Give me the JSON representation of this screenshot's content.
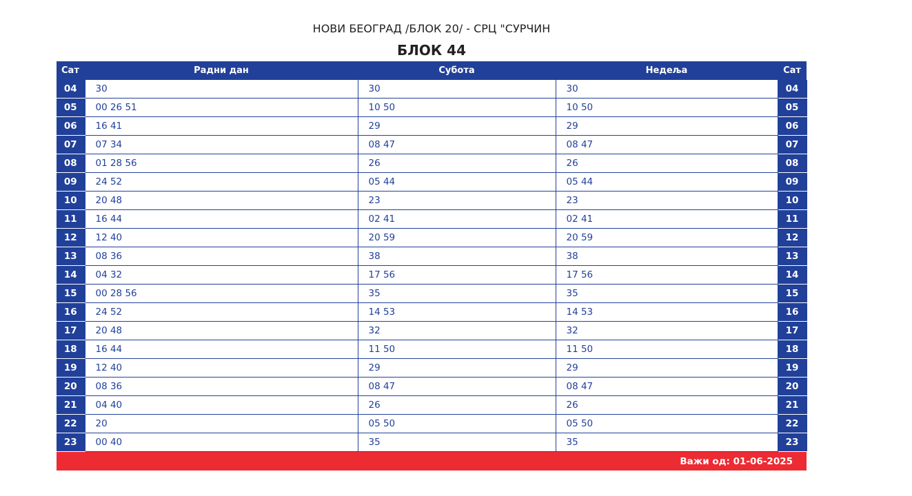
{
  "header": {
    "subtitle": "НОВИ БЕОГРАД /БЛОК 20/ - СРЦ \"СУРЧИН",
    "title": "БЛОК 44"
  },
  "columns": {
    "hour": "Сат",
    "weekday": "Радни дан",
    "saturday": "Субота",
    "sunday": "Недеља",
    "hour_right": "Сат"
  },
  "rows": [
    [
      "04",
      "30",
      "30",
      "30"
    ],
    [
      "05",
      "00 26 51",
      "10 50",
      "10 50"
    ],
    [
      "06",
      "16 41",
      "29",
      "29"
    ],
    [
      "07",
      "07 34",
      "08 47",
      "08 47"
    ],
    [
      "08",
      "01 28 56",
      "26",
      "26"
    ],
    [
      "09",
      "24 52",
      "05 44",
      "05 44"
    ],
    [
      "10",
      "20 48",
      "23",
      "23"
    ],
    [
      "11",
      "16 44",
      "02 41",
      "02 41"
    ],
    [
      "12",
      "12 40",
      "20 59",
      "20 59"
    ],
    [
      "13",
      "08 36",
      "38",
      "38"
    ],
    [
      "14",
      "04 32",
      "17 56",
      "17 56"
    ],
    [
      "15",
      "00 28 56",
      "35",
      "35"
    ],
    [
      "16",
      "24 52",
      "14 53",
      "14 53"
    ],
    [
      "17",
      "20 48",
      "32",
      "32"
    ],
    [
      "18",
      "16 44",
      "11 50",
      "11 50"
    ],
    [
      "19",
      "12 40",
      "29",
      "29"
    ],
    [
      "20",
      "08 36",
      "08 47",
      "08 47"
    ],
    [
      "21",
      "04 40",
      "26",
      "26"
    ],
    [
      "22",
      "20",
      "05 50",
      "05 50"
    ],
    [
      "23",
      "00 40",
      "35",
      "35"
    ]
  ],
  "footer": {
    "valid_from": "Важи од: 01-06-2025"
  },
  "colors": {
    "header_blue": "#21409a",
    "footer_red": "#ed2b33"
  }
}
